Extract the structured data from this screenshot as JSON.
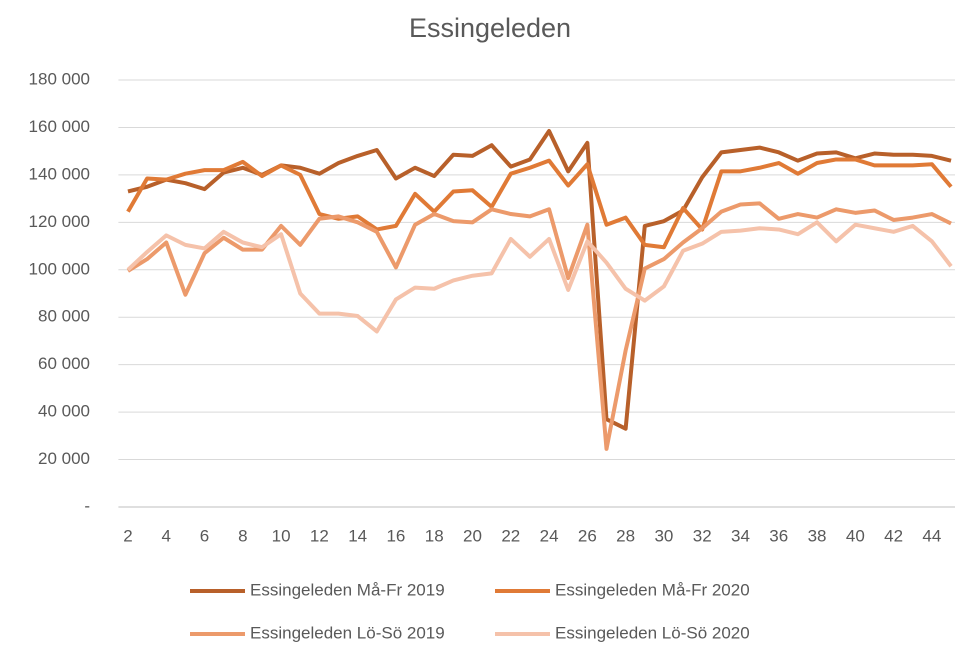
{
  "chart_data": {
    "type": "line",
    "title": "Essingeleden",
    "x": [
      2,
      3,
      4,
      5,
      6,
      7,
      8,
      9,
      10,
      11,
      12,
      13,
      14,
      15,
      16,
      17,
      18,
      19,
      20,
      21,
      22,
      23,
      24,
      25,
      26,
      27,
      28,
      29,
      30,
      31,
      32,
      33,
      34,
      35,
      36,
      37,
      38,
      39,
      40,
      41,
      42,
      43,
      44,
      45
    ],
    "xlim": [
      1.5,
      45.5
    ],
    "xticks": [
      2,
      4,
      6,
      8,
      10,
      12,
      14,
      16,
      18,
      20,
      22,
      24,
      26,
      28,
      30,
      32,
      34,
      36,
      38,
      40,
      42,
      44
    ],
    "ylim": [
      0,
      180000
    ],
    "yticks": [
      {
        "value": 0,
        "label": "-"
      },
      {
        "value": 20000,
        "label": "20 000"
      },
      {
        "value": 40000,
        "label": "40 000"
      },
      {
        "value": 60000,
        "label": "60 000"
      },
      {
        "value": 80000,
        "label": "80 000"
      },
      {
        "value": 100000,
        "label": "100 000"
      },
      {
        "value": 120000,
        "label": "120 000"
      },
      {
        "value": 140000,
        "label": "140 000"
      },
      {
        "value": 160000,
        "label": "160 000"
      },
      {
        "value": 180000,
        "label": "180 000"
      }
    ],
    "grid": true,
    "series": [
      {
        "name": "Essingeleden Må-Fr 2019",
        "color": "#b8602a",
        "values": [
          133000,
          135000,
          138000,
          136500,
          134000,
          141000,
          143000,
          140000,
          144000,
          143000,
          140500,
          145000,
          148000,
          150500,
          138500,
          143000,
          139500,
          148500,
          148000,
          152500,
          143500,
          146500,
          158500,
          141500,
          153500,
          37000,
          33000,
          118500,
          120500,
          125000,
          139000,
          149500,
          150500,
          151500,
          149500,
          146000,
          149000,
          149500,
          147000,
          149000,
          148500,
          148500,
          148000,
          146000
        ]
      },
      {
        "name": "Essingeleden Må-Fr 2020",
        "color": "#e07a36",
        "values": [
          124500,
          138500,
          138000,
          140500,
          142000,
          142000,
          145500,
          139500,
          144000,
          140000,
          123500,
          121500,
          122500,
          117000,
          118500,
          132000,
          124500,
          133000,
          133500,
          126500,
          140500,
          143000,
          146000,
          135500,
          144500,
          119000,
          122000,
          110500,
          109500,
          126000,
          117000,
          141500,
          141500,
          143000,
          145000,
          140500,
          145000,
          146500,
          146500,
          144000,
          144000,
          144000,
          144500,
          135000
        ]
      },
      {
        "name": "Essingeleden Lö-Sö 2019",
        "color": "#ec9a6b",
        "values": [
          99500,
          104500,
          111500,
          89500,
          107000,
          113500,
          108500,
          108500,
          118500,
          110500,
          121500,
          122500,
          120000,
          116000,
          101000,
          119000,
          123500,
          120500,
          120000,
          125500,
          123500,
          122500,
          125500,
          96500,
          119000,
          24500,
          66000,
          100500,
          104500,
          111500,
          117500,
          124500,
          127500,
          128000,
          121500,
          123500,
          122000,
          125500,
          124000,
          125000,
          121000,
          122000,
          123500,
          119500
        ]
      },
      {
        "name": "Essingeleden Lö-Sö 2020",
        "color": "#f5c2aa",
        "values": [
          100000,
          107500,
          114500,
          110500,
          109000,
          116000,
          111500,
          109500,
          115000,
          90000,
          81500,
          81500,
          80500,
          74000,
          87500,
          92500,
          92000,
          95500,
          97500,
          98500,
          113000,
          105500,
          113000,
          91500,
          112000,
          103000,
          92000,
          87000,
          93000,
          108000,
          111000,
          116000,
          116500,
          117500,
          117000,
          115000,
          120000,
          112000,
          119000,
          117500,
          116000,
          118500,
          112000,
          101500
        ]
      }
    ]
  }
}
